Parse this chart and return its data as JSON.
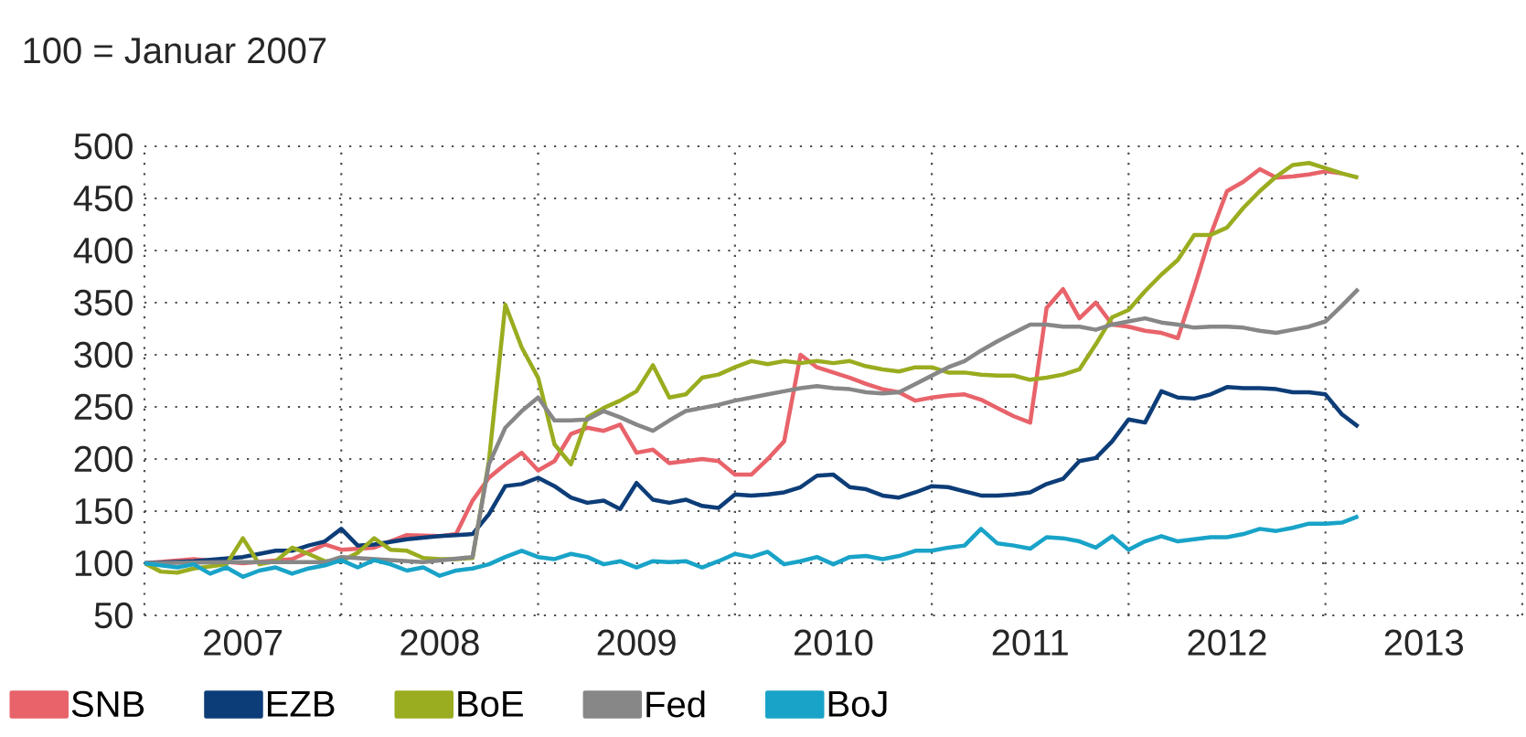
{
  "chart_data": {
    "type": "line",
    "title": "100 = Januar 2007",
    "xlim": [
      "2007-01",
      "2014-01"
    ],
    "ylim": [
      50,
      500
    ],
    "xticks": [
      {
        "value": "2007-01",
        "label": null
      },
      {
        "value": "2007-07",
        "label": "2007"
      },
      {
        "value": "2008-01",
        "label": null
      },
      {
        "value": "2008-07",
        "label": "2008"
      },
      {
        "value": "2009-01",
        "label": null
      },
      {
        "value": "2009-07",
        "label": "2009"
      },
      {
        "value": "2010-01",
        "label": null
      },
      {
        "value": "2010-07",
        "label": "2010"
      },
      {
        "value": "2011-01",
        "label": null
      },
      {
        "value": "2011-07",
        "label": "2011"
      },
      {
        "value": "2012-01",
        "label": null
      },
      {
        "value": "2012-07",
        "label": "2012"
      },
      {
        "value": "2013-01",
        "label": null
      },
      {
        "value": "2013-07",
        "label": "2013"
      },
      {
        "value": "2014-01",
        "label": null
      }
    ],
    "yticks": [
      50,
      100,
      150,
      200,
      250,
      300,
      350,
      400,
      450,
      500
    ],
    "grid": true,
    "legend": "bottom",
    "series": [
      {
        "name": "SNB",
        "color": "#e8636a",
        "x": [
          "2007-01",
          "2007-04",
          "2007-07",
          "2007-10",
          "2007-12",
          "2008-01",
          "2008-03",
          "2008-05",
          "2008-07",
          "2008-08",
          "2008-09",
          "2008-10",
          "2008-11",
          "2008-12",
          "2009-01",
          "2009-02",
          "2009-03",
          "2009-04",
          "2009-05",
          "2009-06",
          "2009-07",
          "2009-08",
          "2009-09",
          "2009-10",
          "2009-11",
          "2009-12",
          "2010-01",
          "2010-02",
          "2010-03",
          "2010-04",
          "2010-05",
          "2010-06",
          "2010-07",
          "2010-08",
          "2010-09",
          "2010-10",
          "2010-11",
          "2010-12",
          "2011-01",
          "2011-02",
          "2011-03",
          "2011-04",
          "2011-05",
          "2011-06",
          "2011-07",
          "2011-08",
          "2011-09",
          "2011-10",
          "2011-11",
          "2011-12",
          "2012-01",
          "2012-02",
          "2012-03",
          "2012-04",
          "2012-05",
          "2012-06",
          "2012-07",
          "2012-08",
          "2012-09",
          "2012-10",
          "2012-11",
          "2012-12",
          "2013-01",
          "2013-02"
        ],
        "values": [
          100,
          104,
          100,
          104,
          118,
          113,
          115,
          127,
          126,
          128,
          160,
          182,
          195,
          206,
          189,
          198,
          224,
          230,
          227,
          233,
          206,
          209,
          196,
          198,
          200,
          198,
          185,
          185,
          200,
          217,
          300,
          288,
          283,
          278,
          272,
          267,
          264,
          256,
          259,
          261,
          262,
          257,
          249,
          241,
          235,
          345,
          363,
          335,
          350,
          329,
          327,
          323,
          321,
          316,
          364,
          415,
          457,
          466,
          478,
          470,
          471,
          473,
          476,
          474
        ]
      },
      {
        "name": "EZB",
        "color": "#0d3d78",
        "x": [
          "2007-01",
          "2007-04",
          "2007-07",
          "2007-08",
          "2007-09",
          "2007-10",
          "2007-11",
          "2007-12",
          "2008-01",
          "2008-02",
          "2008-03",
          "2008-05",
          "2008-07",
          "2008-08",
          "2008-09",
          "2008-10",
          "2008-11",
          "2008-12",
          "2009-01",
          "2009-02",
          "2009-03",
          "2009-04",
          "2009-05",
          "2009-06",
          "2009-07",
          "2009-08",
          "2009-09",
          "2009-10",
          "2009-11",
          "2009-12",
          "2010-01",
          "2010-02",
          "2010-03",
          "2010-04",
          "2010-05",
          "2010-06",
          "2010-07",
          "2010-08",
          "2010-09",
          "2010-10",
          "2010-11",
          "2010-12",
          "2011-01",
          "2011-02",
          "2011-03",
          "2011-04",
          "2011-05",
          "2011-06",
          "2011-07",
          "2011-08",
          "2011-09",
          "2011-10",
          "2011-11",
          "2011-12",
          "2012-01",
          "2012-02",
          "2012-03",
          "2012-04",
          "2012-05",
          "2012-06",
          "2012-07",
          "2012-08",
          "2012-09",
          "2012-10",
          "2012-11",
          "2012-12",
          "2013-01",
          "2013-02",
          "2013-03"
        ],
        "values": [
          100,
          102,
          106,
          109,
          112,
          112,
          117,
          121,
          133,
          117,
          118,
          123,
          126,
          127,
          128,
          147,
          174,
          176,
          182,
          174,
          163,
          158,
          160,
          152,
          177,
          161,
          158,
          161,
          155,
          153,
          166,
          165,
          166,
          168,
          173,
          184,
          185,
          173,
          171,
          165,
          163,
          168,
          174,
          173,
          169,
          165,
          165,
          166,
          168,
          176,
          181,
          198,
          201,
          217,
          238,
          235,
          265,
          259,
          258,
          262,
          269,
          268,
          268,
          267,
          264,
          264,
          262,
          243,
          231
        ]
      },
      {
        "name": "BoE",
        "color": "#9aac1f",
        "x": [
          "2007-01",
          "2007-02",
          "2007-03",
          "2007-04",
          "2007-06",
          "2007-07",
          "2007-08",
          "2007-09",
          "2007-10",
          "2007-11",
          "2007-12",
          "2008-01",
          "2008-02",
          "2008-03",
          "2008-04",
          "2008-05",
          "2008-06",
          "2008-07",
          "2008-08",
          "2008-09",
          "2008-10",
          "2008-11",
          "2008-12",
          "2009-01",
          "2009-02",
          "2009-03",
          "2009-04",
          "2009-05",
          "2009-06",
          "2009-07",
          "2009-08",
          "2009-09",
          "2009-10",
          "2009-11",
          "2009-12",
          "2010-01",
          "2010-02",
          "2010-03",
          "2010-04",
          "2010-05",
          "2010-06",
          "2010-07",
          "2010-08",
          "2010-09",
          "2010-10",
          "2010-11",
          "2010-12",
          "2011-01",
          "2011-02",
          "2011-03",
          "2011-04",
          "2011-05",
          "2011-06",
          "2011-07",
          "2011-08",
          "2011-09",
          "2011-10",
          "2011-11",
          "2011-12",
          "2012-01",
          "2012-02",
          "2012-03",
          "2012-04",
          "2012-05",
          "2012-06",
          "2012-07",
          "2012-08",
          "2012-09",
          "2012-10",
          "2012-11",
          "2012-12",
          "2013-01",
          "2013-02",
          "2013-03"
        ],
        "values": [
          100,
          92,
          91,
          95,
          99,
          124,
          99,
          102,
          115,
          109,
          102,
          102,
          110,
          124,
          113,
          112,
          105,
          104,
          104,
          105,
          198,
          348,
          307,
          278,
          214,
          195,
          240,
          249,
          256,
          265,
          290,
          259,
          262,
          278,
          281,
          288,
          294,
          291,
          294,
          292,
          294,
          292,
          294,
          289,
          286,
          284,
          288,
          288,
          283,
          283,
          281,
          280,
          280,
          276,
          278,
          281,
          286,
          310,
          336,
          343,
          361,
          377,
          391,
          415,
          415,
          422,
          441,
          457,
          471,
          482,
          484,
          479,
          474,
          470
        ]
      },
      {
        "name": "Fed",
        "color": "#878787",
        "x": [
          "2007-01",
          "2007-06",
          "2007-12",
          "2008-01",
          "2008-06",
          "2008-09",
          "2008-10",
          "2008-11",
          "2008-12",
          "2009-01",
          "2009-02",
          "2009-03",
          "2009-04",
          "2009-05",
          "2009-06",
          "2009-07",
          "2009-08",
          "2009-09",
          "2009-10",
          "2009-11",
          "2009-12",
          "2010-01",
          "2010-02",
          "2010-03",
          "2010-04",
          "2010-05",
          "2010-06",
          "2010-07",
          "2010-08",
          "2010-09",
          "2010-10",
          "2010-11",
          "2010-12",
          "2011-01",
          "2011-02",
          "2011-03",
          "2011-04",
          "2011-05",
          "2011-06",
          "2011-07",
          "2011-08",
          "2011-09",
          "2011-10",
          "2011-11",
          "2011-12",
          "2012-01",
          "2012-02",
          "2012-03",
          "2012-04",
          "2012-05",
          "2012-06",
          "2012-07",
          "2012-08",
          "2012-09",
          "2012-10",
          "2012-11",
          "2012-12",
          "2013-01",
          "2013-02",
          "2013-03"
        ],
        "values": [
          100,
          101,
          101,
          106,
          101,
          106,
          195,
          230,
          246,
          259,
          237,
          237,
          238,
          246,
          240,
          233,
          227,
          237,
          246,
          249,
          252,
          256,
          259,
          262,
          265,
          268,
          270,
          268,
          267,
          264,
          263,
          264,
          272,
          280,
          288,
          294,
          304,
          313,
          321,
          329,
          329,
          327,
          327,
          324,
          329,
          332,
          335,
          331,
          329,
          326,
          327,
          327,
          326,
          323,
          321,
          324,
          327,
          332,
          347,
          363
        ]
      },
      {
        "name": "BoJ",
        "color": "#19a3c8",
        "x": [
          "2007-01",
          "2007-03",
          "2007-04",
          "2007-05",
          "2007-06",
          "2007-07",
          "2007-08",
          "2007-09",
          "2007-10",
          "2007-11",
          "2007-12",
          "2008-01",
          "2008-02",
          "2008-03",
          "2008-04",
          "2008-05",
          "2008-06",
          "2008-07",
          "2008-08",
          "2008-09",
          "2008-10",
          "2008-11",
          "2008-12",
          "2009-01",
          "2009-02",
          "2009-03",
          "2009-04",
          "2009-05",
          "2009-06",
          "2009-07",
          "2009-08",
          "2009-09",
          "2009-10",
          "2009-11",
          "2009-12",
          "2010-01",
          "2010-02",
          "2010-03",
          "2010-04",
          "2010-05",
          "2010-06",
          "2010-07",
          "2010-08",
          "2010-09",
          "2010-10",
          "2010-11",
          "2010-12",
          "2011-01",
          "2011-02",
          "2011-03",
          "2011-04",
          "2011-05",
          "2011-06",
          "2011-07",
          "2011-08",
          "2011-09",
          "2011-10",
          "2011-11",
          "2011-12",
          "2012-01",
          "2012-02",
          "2012-03",
          "2012-04",
          "2012-05",
          "2012-06",
          "2012-07",
          "2012-08",
          "2012-09",
          "2012-10",
          "2012-11",
          "2012-12",
          "2013-01",
          "2013-02",
          "2013-03"
        ],
        "values": [
          100,
          96,
          99,
          90,
          96,
          87,
          93,
          96,
          90,
          95,
          98,
          103,
          96,
          103,
          99,
          93,
          96,
          88,
          93,
          95,
          99,
          106,
          112,
          106,
          104,
          109,
          106,
          99,
          102,
          96,
          102,
          101,
          102,
          96,
          102,
          109,
          106,
          111,
          99,
          102,
          106,
          99,
          106,
          107,
          104,
          107,
          112,
          112,
          115,
          117,
          133,
          119,
          117,
          114,
          125,
          124,
          121,
          115,
          126,
          113,
          121,
          126,
          121,
          123,
          125,
          125,
          128,
          133,
          131,
          134,
          138,
          138,
          139,
          145
        ]
      }
    ]
  }
}
